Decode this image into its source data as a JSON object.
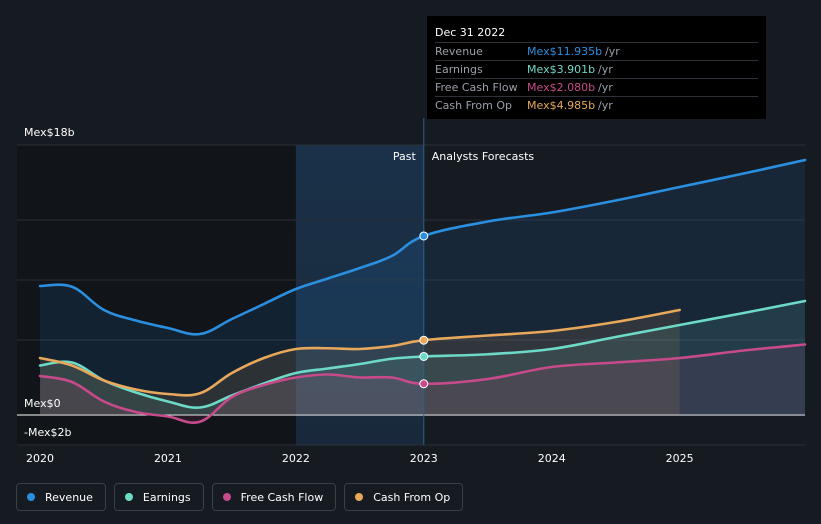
{
  "chart_data": {
    "type": "line",
    "y_unit_prefix": "Mex$",
    "y_axis_labels": [
      "Mex$18b",
      "Mex$0",
      "-Mex$2b"
    ],
    "ylim": [
      -2,
      18
    ],
    "xlim": [
      2019.82,
      2025.98
    ],
    "x_ticks": [
      {
        "value": 2020,
        "label": "2020"
      },
      {
        "value": 2021,
        "label": "2021"
      },
      {
        "value": 2022,
        "label": "2022"
      },
      {
        "value": 2023,
        "label": "2023"
      },
      {
        "value": 2024,
        "label": "2024"
      },
      {
        "value": 2025,
        "label": "2025"
      }
    ],
    "gridlines": [
      18,
      13,
      9,
      5,
      0,
      -2
    ],
    "past_label": "Past",
    "forecast_label": "Analysts Forecasts",
    "divider_x": 2023,
    "shade_start_x": 2022,
    "series": [
      {
        "name": "Revenue",
        "color": "#2b8fe0",
        "points": [
          [
            2020,
            8.6
          ],
          [
            2020.25,
            8.55
          ],
          [
            2020.5,
            7.0
          ],
          [
            2020.75,
            6.3
          ],
          [
            2021,
            5.8
          ],
          [
            2021.25,
            5.4
          ],
          [
            2021.5,
            6.4
          ],
          [
            2021.75,
            7.4
          ],
          [
            2022,
            8.4
          ],
          [
            2022.25,
            9.1
          ],
          [
            2022.5,
            9.8
          ],
          [
            2022.75,
            10.6
          ],
          [
            2023,
            11.935
          ],
          [
            2023.5,
            12.9
          ],
          [
            2024,
            13.5
          ],
          [
            2024.5,
            14.3
          ],
          [
            2025,
            15.2
          ],
          [
            2025.5,
            16.1
          ],
          [
            2025.98,
            17.0
          ]
        ]
      },
      {
        "name": "Earnings",
        "color": "#6dd9c7",
        "points": [
          [
            2020,
            3.3
          ],
          [
            2020.25,
            3.5
          ],
          [
            2020.5,
            2.3
          ],
          [
            2020.75,
            1.5
          ],
          [
            2021,
            0.9
          ],
          [
            2021.25,
            0.5
          ],
          [
            2021.5,
            1.3
          ],
          [
            2021.75,
            2.1
          ],
          [
            2022,
            2.8
          ],
          [
            2022.25,
            3.1
          ],
          [
            2022.5,
            3.4
          ],
          [
            2022.75,
            3.75
          ],
          [
            2023,
            3.901
          ],
          [
            2023.5,
            4.05
          ],
          [
            2024,
            4.4
          ],
          [
            2024.5,
            5.2
          ],
          [
            2025,
            6.0
          ],
          [
            2025.5,
            6.8
          ],
          [
            2025.98,
            7.6
          ]
        ]
      },
      {
        "name": "Free Cash Flow",
        "color": "#c74a8a",
        "points": [
          [
            2020,
            2.6
          ],
          [
            2020.25,
            2.2
          ],
          [
            2020.5,
            0.9
          ],
          [
            2020.75,
            0.2
          ],
          [
            2021,
            -0.1
          ],
          [
            2021.25,
            -0.45
          ],
          [
            2021.5,
            1.2
          ],
          [
            2021.75,
            2.0
          ],
          [
            2022,
            2.5
          ],
          [
            2022.25,
            2.7
          ],
          [
            2022.5,
            2.5
          ],
          [
            2022.75,
            2.5
          ],
          [
            2023,
            2.08
          ],
          [
            2023.5,
            2.4
          ],
          [
            2024,
            3.2
          ],
          [
            2024.5,
            3.5
          ],
          [
            2025,
            3.8
          ],
          [
            2025.5,
            4.3
          ],
          [
            2025.98,
            4.7
          ]
        ]
      },
      {
        "name": "Cash From Op",
        "color": "#e8a85c",
        "points": [
          [
            2020,
            3.8
          ],
          [
            2020.25,
            3.3
          ],
          [
            2020.5,
            2.3
          ],
          [
            2020.75,
            1.7
          ],
          [
            2021,
            1.4
          ],
          [
            2021.25,
            1.45
          ],
          [
            2021.5,
            2.8
          ],
          [
            2021.75,
            3.8
          ],
          [
            2022,
            4.4
          ],
          [
            2022.25,
            4.45
          ],
          [
            2022.5,
            4.4
          ],
          [
            2022.75,
            4.6
          ],
          [
            2023,
            4.985
          ],
          [
            2023.5,
            5.3
          ],
          [
            2024,
            5.6
          ],
          [
            2024.5,
            6.2
          ],
          [
            2025,
            7.0
          ]
        ]
      }
    ]
  },
  "tooltip": {
    "title": "Dec 31 2022",
    "rows": [
      {
        "label": "Revenue",
        "value": "Mex$11.935b",
        "unit": "/yr",
        "color": "#2b8fe0"
      },
      {
        "label": "Earnings",
        "value": "Mex$3.901b",
        "unit": "/yr",
        "color": "#6dd9c7"
      },
      {
        "label": "Free Cash Flow",
        "value": "Mex$2.080b",
        "unit": "/yr",
        "color": "#c74a8a"
      },
      {
        "label": "Cash From Op",
        "value": "Mex$4.985b",
        "unit": "/yr",
        "color": "#e8a85c"
      }
    ]
  },
  "legend": [
    {
      "label": "Revenue",
      "color": "#2b8fe0"
    },
    {
      "label": "Earnings",
      "color": "#6dd9c7"
    },
    {
      "label": "Free Cash Flow",
      "color": "#c74a8a"
    },
    {
      "label": "Cash From Op",
      "color": "#e8a85c"
    }
  ]
}
